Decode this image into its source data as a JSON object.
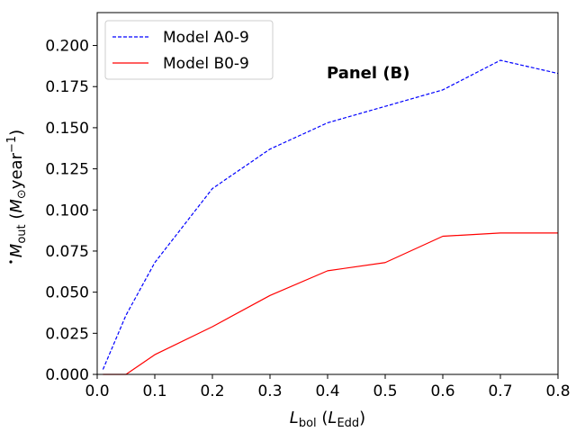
{
  "chart_data": {
    "type": "line",
    "xlabel": {
      "main": "L",
      "sub": "bol",
      "paren_main": "L",
      "paren_sub": "Edd"
    },
    "ylabel": {
      "main": "M",
      "sub": "out",
      "unit_main": "M",
      "unit_sub": "⊙",
      "unit_text": "year",
      "unit_sup": "−1"
    },
    "xlim": [
      0.0,
      0.8
    ],
    "ylim": [
      0.0,
      0.22
    ],
    "xticks": [
      0.0,
      0.1,
      0.2,
      0.3,
      0.4,
      0.5,
      0.6,
      0.7,
      0.8
    ],
    "xtick_labels": [
      "0.0",
      "0.1",
      "0.2",
      "0.3",
      "0.4",
      "0.5",
      "0.6",
      "0.7",
      "0.8"
    ],
    "yticks": [
      0.0,
      0.025,
      0.05,
      0.075,
      0.1,
      0.125,
      0.15,
      0.175,
      0.2
    ],
    "ytick_labels": [
      "0.000",
      "0.025",
      "0.050",
      "0.075",
      "0.100",
      "0.125",
      "0.150",
      "0.175",
      "0.200"
    ],
    "grid": false,
    "legend_position": "top-left",
    "annotation": "Panel (B)",
    "series": [
      {
        "name": "Model A0-9",
        "color": "#0000ff",
        "style": "dashed",
        "x": [
          0.01,
          0.05,
          0.1,
          0.2,
          0.3,
          0.4,
          0.5,
          0.6,
          0.7,
          0.8
        ],
        "y": [
          0.003,
          0.036,
          0.068,
          0.113,
          0.137,
          0.153,
          0.163,
          0.173,
          0.191,
          0.183
        ]
      },
      {
        "name": "Model B0-9",
        "color": "#ff0000",
        "style": "solid",
        "x": [
          0.01,
          0.05,
          0.1,
          0.2,
          0.3,
          0.4,
          0.5,
          0.6,
          0.7,
          0.8
        ],
        "y": [
          0.0,
          0.0,
          0.012,
          0.029,
          0.048,
          0.063,
          0.068,
          0.084,
          0.086,
          0.086
        ]
      }
    ]
  }
}
